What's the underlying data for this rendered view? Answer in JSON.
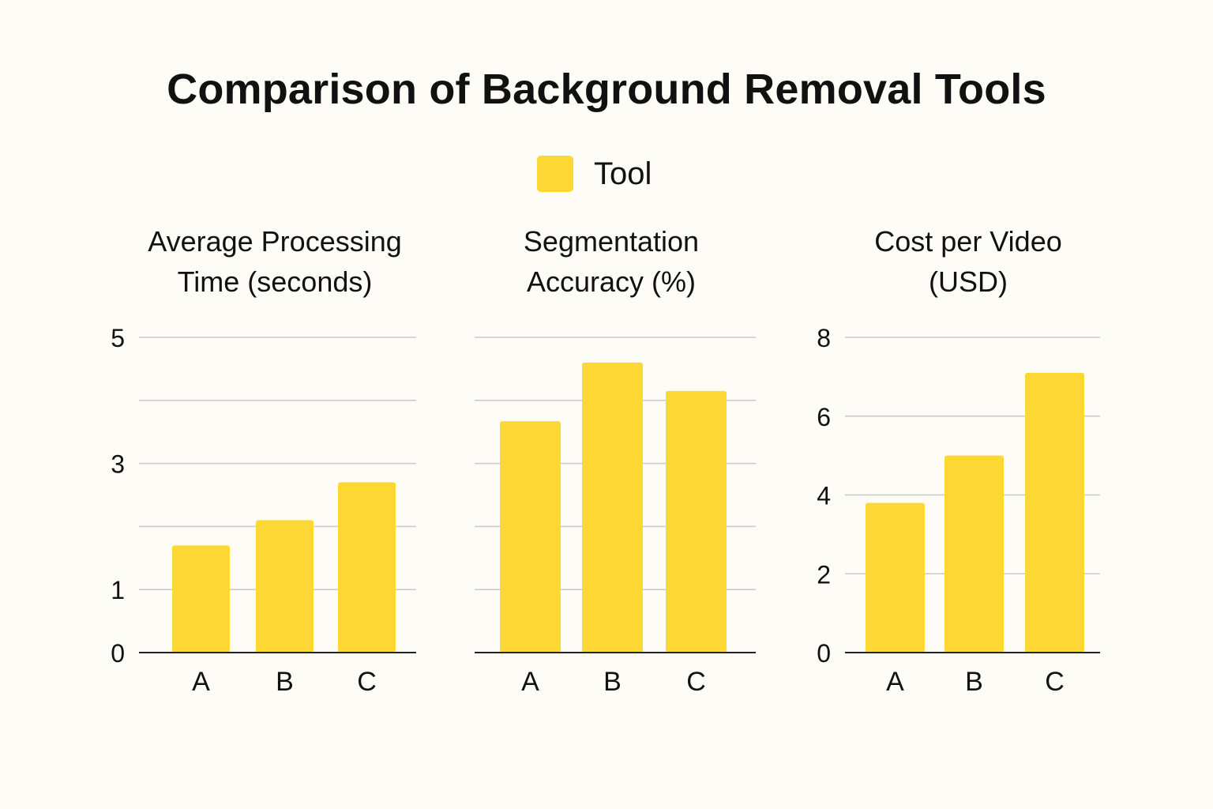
{
  "title": "Comparison of Background Removal Tools",
  "legend": {
    "label": "Tool",
    "color": "#fdd835"
  },
  "chart_data": [
    {
      "type": "bar",
      "title_lines": [
        "Average Processing",
        "Time (seconds)"
      ],
      "categories": [
        "A",
        "B",
        "C"
      ],
      "series": [
        {
          "name": "Tool",
          "values": [
            1.7,
            2.1,
            2.7
          ]
        }
      ],
      "ylim": [
        0,
        5
      ],
      "yticks": [
        0,
        1,
        3,
        5
      ],
      "yticks_labeled": true,
      "color": "#fdd835"
    },
    {
      "type": "bar",
      "title_lines": [
        "Segmentation",
        "Accuracy (%)"
      ],
      "categories": [
        "A",
        "B",
        "C"
      ],
      "series": [
        {
          "name": "Tool",
          "values": [
            3.67,
            4.6,
            4.15
          ]
        }
      ],
      "ylim": [
        0,
        5
      ],
      "yticks": [
        0,
        1,
        3,
        5
      ],
      "yticks_labeled": false,
      "color": "#fdd835"
    },
    {
      "type": "bar",
      "title_lines": [
        "Cost per Video",
        "(USD)"
      ],
      "categories": [
        "A",
        "B",
        "C"
      ],
      "series": [
        {
          "name": "Tool",
          "values": [
            3.8,
            5.0,
            7.1
          ]
        }
      ],
      "ylim": [
        0,
        8
      ],
      "yticks": [
        0,
        2,
        4,
        6,
        8
      ],
      "yticks_labeled": true,
      "color": "#fdd835"
    }
  ]
}
